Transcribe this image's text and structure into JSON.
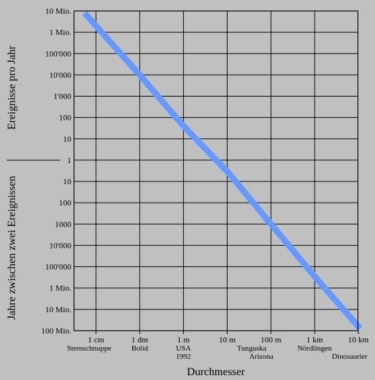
{
  "chart_data": {
    "type": "line",
    "scale": "log-log",
    "grid": true,
    "xlabel": "Durchmesser",
    "ylabel_top": "Ereignisse pro Jahr",
    "ylabel_bottom": "Jahre zwischen zwei Ereignissen",
    "x_ticks": [
      {
        "label": "1 cm",
        "value_m": 0.01
      },
      {
        "label": "1 dm",
        "value_m": 0.1
      },
      {
        "label": "1 m",
        "value_m": 1
      },
      {
        "label": "10 m",
        "value_m": 10
      },
      {
        "label": "100 m",
        "value_m": 100
      },
      {
        "label": "1 km",
        "value_m": 1000
      },
      {
        "label": "10 km",
        "value_m": 10000
      }
    ],
    "y_ticks": [
      {
        "label": "10 Mio.",
        "events_per_year": 10000000
      },
      {
        "label": "1 Mio.",
        "events_per_year": 1000000
      },
      {
        "label": "100'000",
        "events_per_year": 100000
      },
      {
        "label": "10'000",
        "events_per_year": 10000
      },
      {
        "label": "1'000",
        "events_per_year": 1000
      },
      {
        "label": "100",
        "events_per_year": 100
      },
      {
        "label": "10",
        "events_per_year": 10
      },
      {
        "label": "1",
        "events_per_year": 1
      },
      {
        "label": "10",
        "events_per_year": 0.1
      },
      {
        "label": "100",
        "events_per_year": 0.01
      },
      {
        "label": "1000",
        "events_per_year": 0.001
      },
      {
        "label": "10'000",
        "events_per_year": 0.0001
      },
      {
        "label": "100'000",
        "events_per_year": 1e-05
      },
      {
        "label": "1 Mio.",
        "events_per_year": 1e-06
      },
      {
        "label": "10 Mio.",
        "events_per_year": 1e-07
      },
      {
        "label": "100 Mio.",
        "events_per_year": 1e-08
      }
    ],
    "annotations": [
      {
        "lines": [
          "Sternschnuppe"
        ],
        "at_m": 0.01
      },
      {
        "lines": [
          "Bolid"
        ],
        "at_m": 0.1
      },
      {
        "lines": [
          "USA",
          "1992"
        ],
        "at_m": 1
      },
      {
        "lines": [
          "Tunguska",
          "Arizona"
        ],
        "at_m": 100
      },
      {
        "lines": [
          "Nördlingen"
        ],
        "at_m": 1000
      },
      {
        "lines": [
          "Dinosaurier"
        ],
        "at_m": 10000
      }
    ],
    "series": [
      {
        "color": "#6699ff",
        "points": [
          {
            "x_m": 0.0055,
            "events_per_year": 8000000
          },
          {
            "x_m": 0.1,
            "events_per_year": 10000
          },
          {
            "x_m": 1,
            "events_per_year": 40
          },
          {
            "x_m": 10,
            "events_per_year": 0.3
          },
          {
            "x_m": 100,
            "events_per_year": 0.001
          },
          {
            "x_m": 1000,
            "events_per_year": 3.5e-06
          },
          {
            "x_m": 11000,
            "events_per_year": 1.25e-08
          }
        ]
      }
    ],
    "colors": {
      "background": "#c0c0c0",
      "grid": "#000000",
      "line": "#6699ff"
    }
  }
}
